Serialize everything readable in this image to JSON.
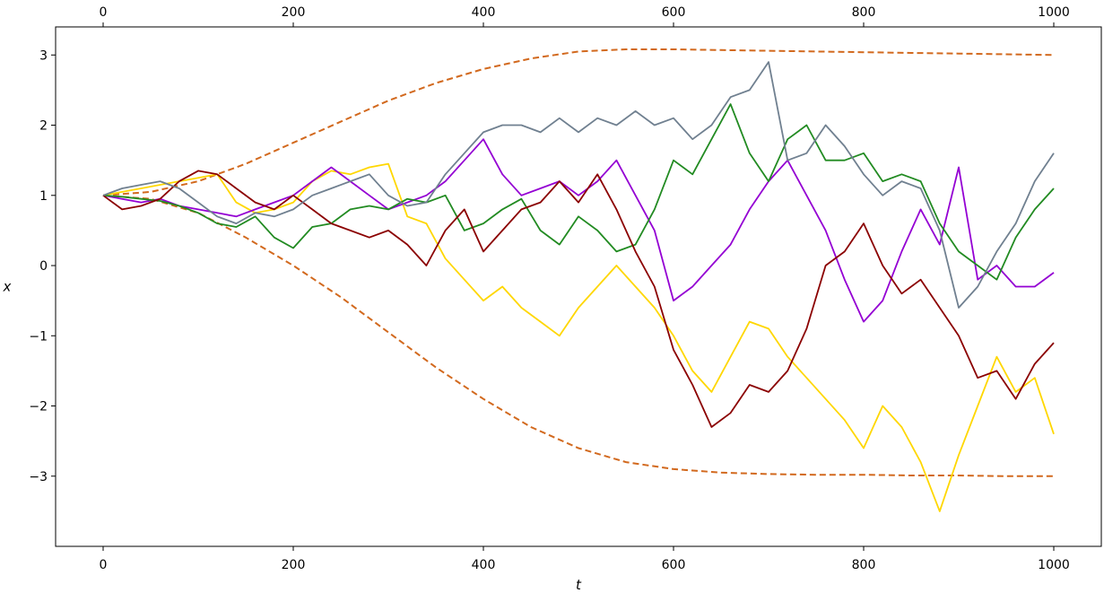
{
  "chart_data": {
    "type": "line",
    "title": "",
    "xlabel": "t",
    "ylabel": "x",
    "xlim": [
      -50,
      1050
    ],
    "ylim": [
      -4.0,
      3.4
    ],
    "xticks": [
      0,
      200,
      400,
      600,
      800,
      1000
    ],
    "xtick_labels": [
      "0",
      "200",
      "400",
      "600",
      "800",
      "1000"
    ],
    "xticks_top": true,
    "yticks": [
      -3,
      -2,
      -1,
      0,
      1,
      2,
      3
    ],
    "ytick_labels": [
      "−3",
      "−2",
      "−1",
      "0",
      "1",
      "2",
      "3"
    ],
    "grid": false,
    "legend": "none",
    "bounds": {
      "color": "#d2691e",
      "style": "dashed",
      "x": [
        0,
        50,
        100,
        150,
        200,
        250,
        300,
        350,
        400,
        450,
        500,
        550,
        600,
        650,
        700,
        750,
        800,
        850,
        900,
        950,
        1000
      ],
      "upper": [
        1.0,
        1.05,
        1.2,
        1.45,
        1.75,
        2.05,
        2.35,
        2.6,
        2.8,
        2.95,
        3.05,
        3.08,
        3.08,
        3.07,
        3.06,
        3.05,
        3.04,
        3.03,
        3.02,
        3.01,
        3.0
      ],
      "lower": [
        1.0,
        0.95,
        0.75,
        0.4,
        0.0,
        -0.45,
        -0.95,
        -1.45,
        -1.9,
        -2.3,
        -2.6,
        -2.8,
        -2.9,
        -2.95,
        -2.97,
        -2.98,
        -2.98,
        -2.99,
        -2.99,
        -3.0,
        -3.0
      ]
    },
    "series": [
      {
        "color": "#ffd700",
        "x": [
          0,
          20,
          40,
          60,
          80,
          100,
          120,
          140,
          160,
          180,
          200,
          220,
          240,
          260,
          280,
          300,
          320,
          340,
          360,
          380,
          400,
          420,
          440,
          460,
          480,
          500,
          520,
          540,
          560,
          580,
          600,
          620,
          640,
          660,
          680,
          700,
          720,
          740,
          760,
          780,
          800,
          820,
          840,
          860,
          880,
          900,
          920,
          940,
          960,
          980,
          1000
        ],
        "y": [
          1.0,
          1.05,
          1.1,
          1.15,
          1.2,
          1.25,
          1.3,
          0.9,
          0.75,
          0.8,
          0.9,
          1.2,
          1.35,
          1.3,
          1.4,
          1.45,
          0.7,
          0.6,
          0.1,
          -0.2,
          -0.5,
          -0.3,
          -0.6,
          -0.8,
          -1.0,
          -0.6,
          -0.3,
          0.0,
          -0.3,
          -0.6,
          -1.0,
          -1.5,
          -1.8,
          -1.3,
          -0.8,
          -0.9,
          -1.3,
          -1.6,
          -1.9,
          -2.2,
          -2.6,
          -2.0,
          -2.3,
          -2.8,
          -3.5,
          -2.7,
          -2.0,
          -1.3,
          -1.8,
          -1.6,
          -2.4
        ]
      },
      {
        "color": "#9400d3",
        "x": [
          0,
          20,
          40,
          60,
          80,
          100,
          120,
          140,
          160,
          180,
          200,
          220,
          240,
          260,
          280,
          300,
          320,
          340,
          360,
          380,
          400,
          420,
          440,
          460,
          480,
          500,
          520,
          540,
          560,
          580,
          600,
          620,
          640,
          660,
          680,
          700,
          720,
          740,
          760,
          780,
          800,
          820,
          840,
          860,
          880,
          900,
          920,
          940,
          960,
          980,
          1000
        ],
        "y": [
          1.0,
          0.95,
          0.9,
          0.95,
          0.85,
          0.8,
          0.75,
          0.7,
          0.8,
          0.9,
          1.0,
          1.2,
          1.4,
          1.2,
          1.0,
          0.8,
          0.9,
          1.0,
          1.2,
          1.5,
          1.8,
          1.3,
          1.0,
          1.1,
          1.2,
          1.0,
          1.2,
          1.5,
          1.0,
          0.5,
          -0.5,
          -0.3,
          0.0,
          0.3,
          0.8,
          1.2,
          1.5,
          1.0,
          0.5,
          -0.2,
          -0.8,
          -0.5,
          0.2,
          0.8,
          0.3,
          1.4,
          -0.2,
          0.0,
          -0.3,
          -0.3,
          -0.1
        ]
      },
      {
        "color": "#228b22",
        "x": [
          0,
          20,
          40,
          60,
          80,
          100,
          120,
          140,
          160,
          180,
          200,
          220,
          240,
          260,
          280,
          300,
          320,
          340,
          360,
          380,
          400,
          420,
          440,
          460,
          480,
          500,
          520,
          540,
          560,
          580,
          600,
          620,
          640,
          660,
          680,
          700,
          720,
          740,
          760,
          780,
          800,
          820,
          840,
          860,
          880,
          900,
          920,
          940,
          960,
          980,
          1000
        ],
        "y": [
          1.0,
          0.98,
          0.95,
          0.92,
          0.85,
          0.75,
          0.6,
          0.55,
          0.7,
          0.4,
          0.25,
          0.55,
          0.6,
          0.8,
          0.85,
          0.8,
          0.95,
          0.9,
          1.0,
          0.5,
          0.6,
          0.8,
          0.95,
          0.5,
          0.3,
          0.7,
          0.5,
          0.2,
          0.3,
          0.8,
          1.5,
          1.3,
          1.8,
          2.3,
          1.6,
          1.2,
          1.8,
          2.0,
          1.5,
          1.5,
          1.6,
          1.2,
          1.3,
          1.2,
          0.6,
          0.2,
          0.0,
          -0.2,
          0.4,
          0.8,
          1.1
        ]
      },
      {
        "color": "#8b0000",
        "x": [
          0,
          20,
          40,
          60,
          80,
          100,
          120,
          140,
          160,
          180,
          200,
          220,
          240,
          260,
          280,
          300,
          320,
          340,
          360,
          380,
          400,
          420,
          440,
          460,
          480,
          500,
          520,
          540,
          560,
          580,
          600,
          620,
          640,
          660,
          680,
          700,
          720,
          740,
          760,
          780,
          800,
          820,
          840,
          860,
          880,
          900,
          920,
          940,
          960,
          980,
          1000
        ],
        "y": [
          1.0,
          0.8,
          0.85,
          0.95,
          1.2,
          1.35,
          1.3,
          1.1,
          0.9,
          0.8,
          1.0,
          0.8,
          0.6,
          0.5,
          0.4,
          0.5,
          0.3,
          0.0,
          0.5,
          0.8,
          0.2,
          0.5,
          0.8,
          0.9,
          1.2,
          0.9,
          1.3,
          0.8,
          0.2,
          -0.3,
          -1.2,
          -1.7,
          -2.3,
          -2.1,
          -1.7,
          -1.8,
          -1.5,
          -0.9,
          0.0,
          0.2,
          0.6,
          0.0,
          -0.4,
          -0.2,
          -0.6,
          -1.0,
          -1.6,
          -1.5,
          -1.9,
          -1.4,
          -1.1
        ]
      },
      {
        "color": "#708090",
        "x": [
          0,
          20,
          40,
          60,
          80,
          100,
          120,
          140,
          160,
          180,
          200,
          220,
          240,
          260,
          280,
          300,
          320,
          340,
          360,
          380,
          400,
          420,
          440,
          460,
          480,
          500,
          520,
          540,
          560,
          580,
          600,
          620,
          640,
          660,
          680,
          700,
          720,
          740,
          760,
          780,
          800,
          820,
          840,
          860,
          880,
          900,
          920,
          940,
          960,
          980,
          1000
        ],
        "y": [
          1.0,
          1.1,
          1.15,
          1.2,
          1.1,
          0.9,
          0.7,
          0.6,
          0.75,
          0.7,
          0.8,
          1.0,
          1.1,
          1.2,
          1.3,
          1.0,
          0.85,
          0.9,
          1.3,
          1.6,
          1.9,
          2.0,
          2.0,
          1.9,
          2.1,
          1.9,
          2.1,
          2.0,
          2.2,
          2.0,
          2.1,
          1.8,
          2.0,
          2.4,
          2.5,
          2.9,
          1.5,
          1.6,
          2.0,
          1.7,
          1.3,
          1.0,
          1.2,
          1.1,
          0.5,
          -0.6,
          -0.3,
          0.2,
          0.6,
          1.2,
          1.6
        ]
      }
    ]
  }
}
